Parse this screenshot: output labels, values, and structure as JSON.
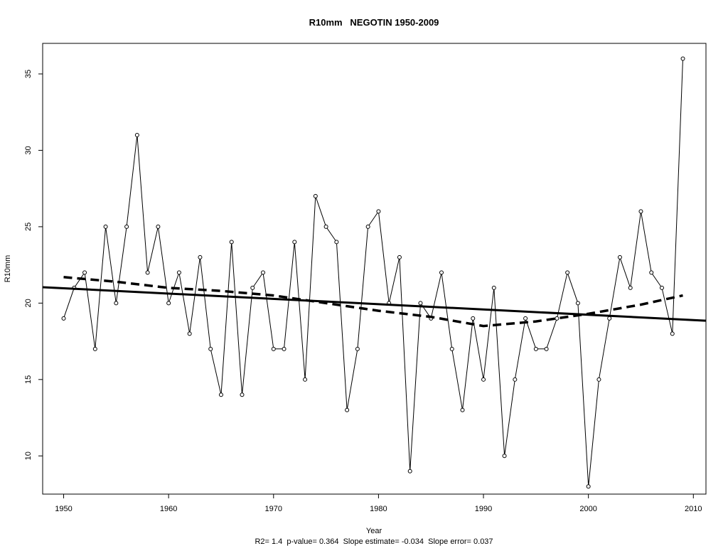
{
  "chart_data": {
    "type": "line",
    "title": "R10mm   NEGOTIN 1950-2009",
    "xlabel": "Year",
    "ylabel": "R10mm",
    "footer": "R2= 1.4  p-value= 0.364  Slope estimate= -0.034  Slope error= 0.037",
    "xlim": [
      1948,
      2011.2
    ],
    "ylim": [
      7.5,
      37
    ],
    "x_ticks": [
      1950,
      1960,
      1970,
      1980,
      1990,
      2000,
      2010
    ],
    "y_ticks": [
      10,
      15,
      20,
      25,
      30,
      35
    ],
    "grid": false,
    "legend": "none",
    "series": [
      {
        "style": "line-with-circle-markers",
        "color": "#000000",
        "x": [
          1950,
          1951,
          1952,
          1953,
          1954,
          1955,
          1956,
          1957,
          1958,
          1959,
          1960,
          1961,
          1962,
          1963,
          1964,
          1965,
          1966,
          1967,
          1968,
          1969,
          1970,
          1971,
          1972,
          1973,
          1974,
          1975,
          1976,
          1977,
          1978,
          1979,
          1980,
          1981,
          1982,
          1983,
          1984,
          1985,
          1986,
          1987,
          1988,
          1989,
          1990,
          1991,
          1992,
          1993,
          1994,
          1995,
          1996,
          1997,
          1998,
          1999,
          2000,
          2001,
          2002,
          2003,
          2004,
          2005,
          2006,
          2007,
          2008,
          2009
        ],
        "y": [
          19,
          21,
          22,
          17,
          25,
          20,
          25,
          31,
          22,
          25,
          20,
          22,
          18,
          23,
          17,
          14,
          24,
          14,
          21,
          22,
          17,
          17,
          24,
          15,
          27,
          25,
          24,
          13,
          17,
          25,
          26,
          20,
          23,
          9,
          20,
          19,
          22,
          17,
          13,
          19,
          15,
          21,
          10,
          15,
          19,
          17,
          17,
          19,
          22,
          20,
          8,
          15,
          19,
          23,
          21,
          26,
          22,
          21,
          18,
          36
        ]
      },
      {
        "style": "solid-thick",
        "color": "#000000",
        "x": [
          1948,
          2011.2
        ],
        "y": [
          21.04,
          18.85
        ]
      },
      {
        "style": "dashed-thick",
        "color": "#000000",
        "x": [
          1950,
          1955,
          1960,
          1965,
          1970,
          1975,
          1980,
          1985,
          1990,
          1995,
          2000,
          2005,
          2009
        ],
        "y": [
          21.7,
          21.4,
          21.0,
          20.8,
          20.5,
          20.0,
          19.5,
          19.1,
          18.5,
          18.8,
          19.3,
          19.9,
          20.5
        ]
      }
    ]
  }
}
